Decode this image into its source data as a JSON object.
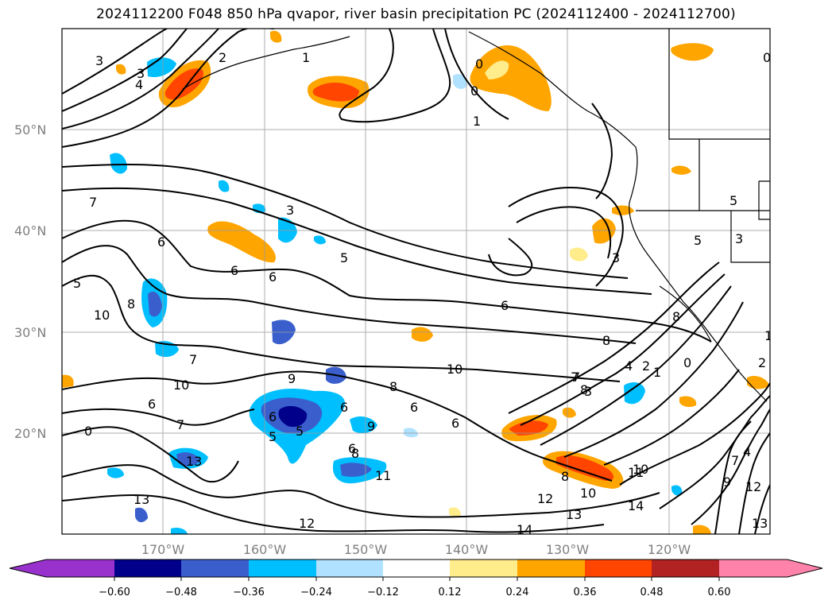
{
  "title": "2024112200 F048 850 hPa qvapor, river basin precipitation PC (2024112400 - 2024112700)",
  "map": {
    "lat_labels": [
      "50°N",
      "40°N",
      "30°N",
      "20°N"
    ],
    "lon_labels": [
      "170°W",
      "160°W",
      "150°W",
      "140°W",
      "130°W",
      "120°W"
    ],
    "lat_range": [
      10,
      60
    ],
    "lon_range": [
      -180,
      -110
    ],
    "contour_labels": [
      "3",
      "3",
      "4",
      "2",
      "1",
      "0",
      "0",
      "1",
      "3",
      "5",
      "7",
      "6",
      "6",
      "6",
      "5",
      "5",
      "5",
      "3",
      "3",
      "6",
      "8",
      "8",
      "8",
      "10",
      "10",
      "7",
      "9",
      "10",
      "8",
      "7",
      "6",
      "6",
      "6",
      "5",
      "6",
      "9",
      "8",
      "6",
      "7",
      "4",
      "2",
      "7",
      "1",
      "0",
      "8",
      "11",
      "10",
      "12",
      "13",
      "13",
      "14",
      "12",
      "14",
      "13",
      "13",
      "12",
      "11",
      "10",
      "9",
      "8",
      "7",
      "6",
      "5",
      "4",
      "3",
      "2",
      "1",
      "0",
      "0"
    ]
  },
  "colorbar": {
    "ticks": [
      "−0.60",
      "−0.48",
      "−0.36",
      "−0.24",
      "−0.12",
      "0.12",
      "0.24",
      "0.36",
      "0.48",
      "0.60"
    ],
    "colors": [
      "#9932cc",
      "#00008b",
      "#3a5fcd",
      "#00bfff",
      "#b0e2ff",
      "#ffffff",
      "#ffec8b",
      "#ffa500",
      "#ff4500",
      "#b22222",
      "#ff82ab"
    ]
  }
}
